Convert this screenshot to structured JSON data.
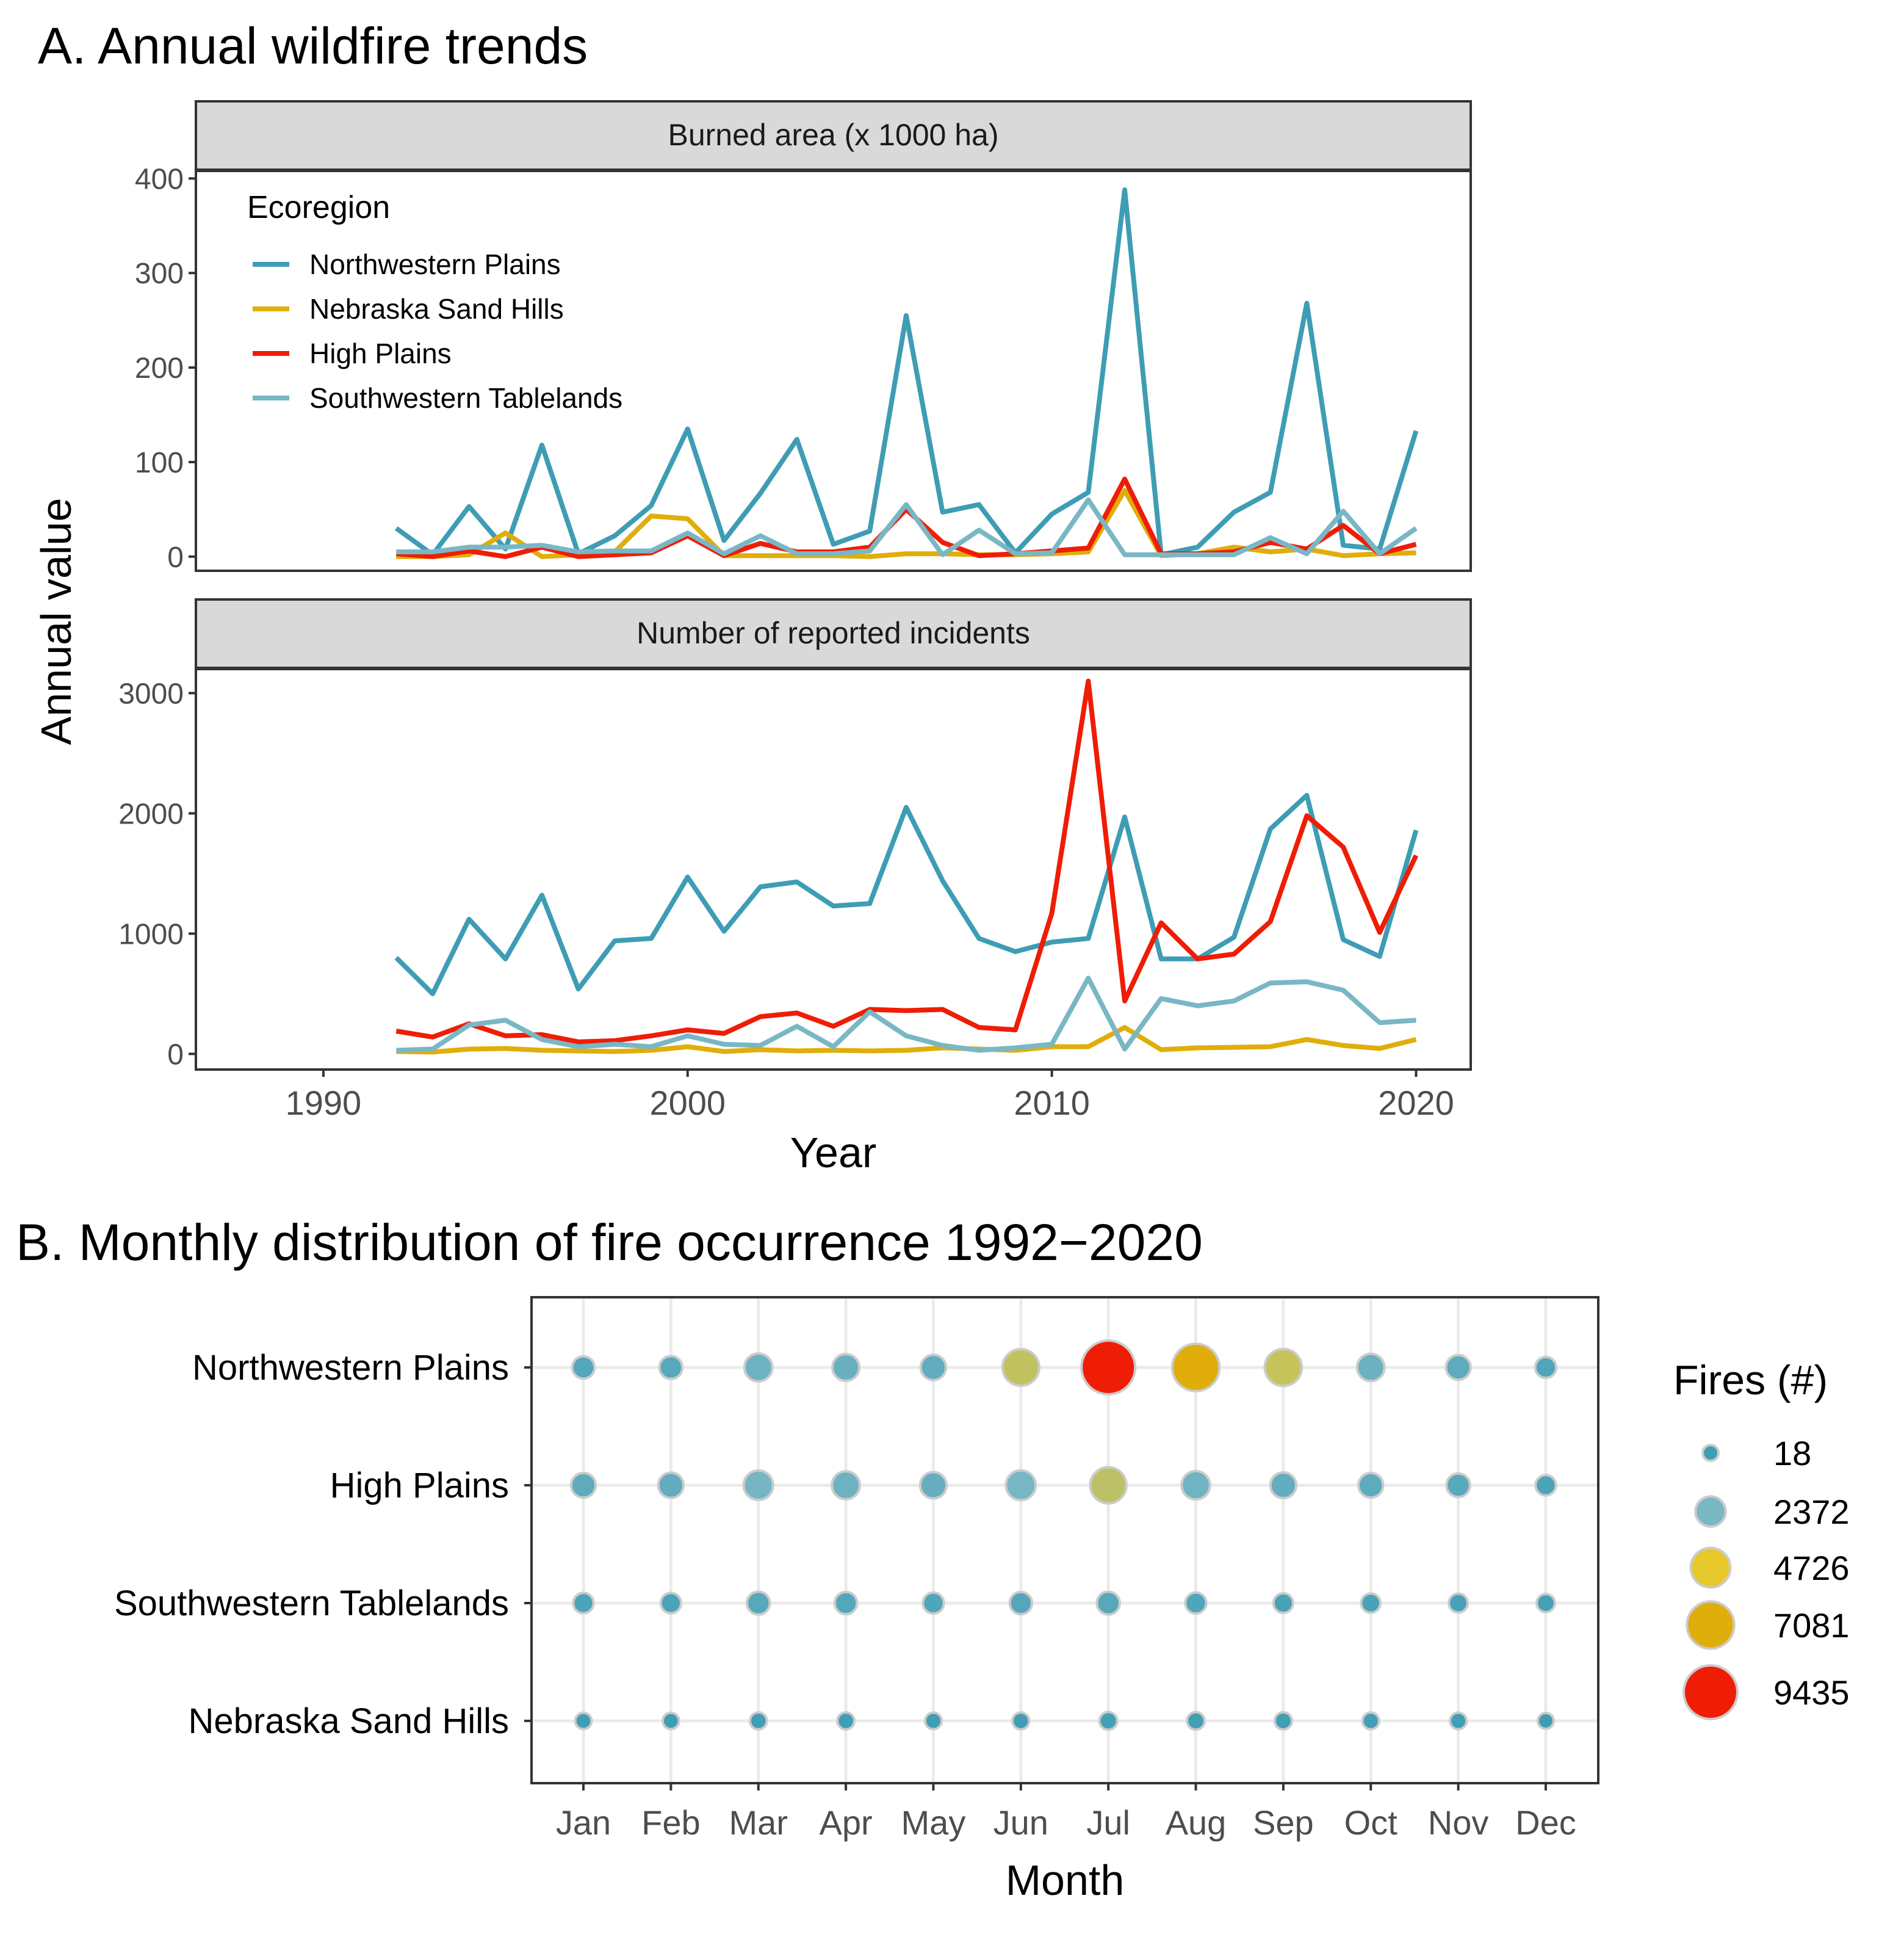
{
  "colors": {
    "northwestern": "#3e9db4",
    "nebraska": "#e0ae0b",
    "high": "#ef1d06",
    "southwestern": "#79b7c5",
    "strip_bg": "#d9d9d9",
    "grid": "#ebebeb",
    "panel_border": "#333333",
    "bubble_outline": "#cccccc"
  },
  "chart_data": [
    {
      "panel": "A",
      "type": "line",
      "title": "A. Annual wildfire trends",
      "xlabel": "Year",
      "ylabel": "Annual value",
      "xlim": [
        1986.5,
        2021.5
      ],
      "x_ticks": [
        1990,
        2000,
        2010,
        2020
      ],
      "grid": false,
      "legend": {
        "title": "Ecoregion",
        "placement": "top-left inside first facet",
        "entries": [
          "Northwestern Plains",
          "Nebraska Sand Hills",
          "High Plains",
          "Southwestern Tablelands"
        ]
      },
      "x": [
        1992,
        1993,
        1994,
        1995,
        1996,
        1997,
        1998,
        1999,
        2000,
        2001,
        2002,
        2003,
        2004,
        2005,
        2006,
        2007,
        2008,
        2009,
        2010,
        2011,
        2012,
        2013,
        2014,
        2015,
        2016,
        2017,
        2018,
        2019,
        2020
      ],
      "facets": [
        {
          "strip": "Burned area (x 1000 ha)",
          "ylim": [
            -15,
            408
          ],
          "y_ticks": [
            0,
            100,
            200,
            300,
            400
          ],
          "series": [
            {
              "name": "Northwestern Plains",
              "color_key": "northwestern",
              "values": [
                30,
                2,
                53,
                8,
                118,
                3,
                22,
                54,
                135,
                17,
                67,
                124,
                13,
                27,
                255,
                47,
                55,
                4,
                45,
                68,
                388,
                2,
                10,
                47,
                68,
                268,
                12,
                8,
                133
              ]
            },
            {
              "name": "Nebraska Sand Hills",
              "color_key": "nebraska",
              "values": [
                0,
                0,
                2,
                25,
                0,
                2,
                5,
                43,
                40,
                1,
                1,
                1,
                1,
                0,
                3,
                3,
                2,
                2,
                3,
                5,
                70,
                1,
                3,
                10,
                5,
                8,
                1,
                3,
                4
              ]
            },
            {
              "name": "High Plains",
              "color_key": "high",
              "values": [
                3,
                0,
                6,
                0,
                10,
                0,
                2,
                4,
                22,
                1,
                14,
                5,
                5,
                10,
                50,
                15,
                1,
                3,
                6,
                9,
                82,
                3,
                3,
                5,
                15,
                8,
                33,
                3,
                13
              ]
            },
            {
              "name": "Southwestern Tablelands",
              "color_key": "southwestern",
              "values": [
                5,
                5,
                10,
                10,
                12,
                5,
                6,
                6,
                25,
                3,
                22,
                3,
                3,
                6,
                55,
                2,
                28,
                3,
                4,
                60,
                2,
                2,
                2,
                2,
                20,
                3,
                48,
                3,
                30
              ]
            }
          ]
        },
        {
          "strip": "Number of reported incidents",
          "ylim": [
            -130,
            3200
          ],
          "y_ticks": [
            0,
            1000,
            2000,
            3000
          ],
          "series": [
            {
              "name": "Northwestern Plains",
              "color_key": "northwestern",
              "values": [
                800,
                500,
                1120,
                790,
                1320,
                540,
                940,
                960,
                1470,
                1020,
                1390,
                1430,
                1230,
                1250,
                2050,
                1440,
                960,
                850,
                930,
                960,
                1970,
                790,
                790,
                970,
                1870,
                2150,
                950,
                810,
                1860
              ]
            },
            {
              "name": "Nebraska Sand Hills",
              "color_key": "nebraska",
              "values": [
                20,
                15,
                40,
                45,
                30,
                25,
                20,
                30,
                60,
                20,
                35,
                25,
                30,
                25,
                30,
                50,
                40,
                30,
                60,
                60,
                220,
                35,
                50,
                55,
                60,
                120,
                70,
                45,
                120
              ]
            },
            {
              "name": "High Plains",
              "color_key": "high",
              "values": [
                190,
                140,
                250,
                150,
                160,
                100,
                110,
                150,
                200,
                170,
                310,
                340,
                230,
                370,
                360,
                370,
                220,
                200,
                1170,
                3100,
                440,
                1090,
                790,
                830,
                1100,
                1980,
                1720,
                1010,
                1650
              ]
            },
            {
              "name": "Southwestern Tablelands",
              "color_key": "southwestern",
              "values": [
                30,
                40,
                240,
                280,
                120,
                60,
                80,
                60,
                150,
                80,
                70,
                230,
                60,
                350,
                150,
                70,
                30,
                50,
                80,
                630,
                40,
                460,
                400,
                440,
                590,
                600,
                530,
                260,
                280
              ]
            }
          ]
        }
      ]
    },
    {
      "panel": "B",
      "type": "scatter",
      "subtype": "bubble",
      "title": "B. Monthly distribution of fire occurrence 1992−2020",
      "xlabel": "Month",
      "ylabel": "",
      "grid": true,
      "categories_x": [
        "Jan",
        "Feb",
        "Mar",
        "Apr",
        "May",
        "Jun",
        "Jul",
        "Aug",
        "Sep",
        "Oct",
        "Nov",
        "Dec"
      ],
      "categories_y": [
        "Northwestern Plains",
        "High Plains",
        "Southwestern Tablelands",
        "Nebraska Sand Hills"
      ],
      "size_range": [
        18,
        9435
      ],
      "color_scale": [
        {
          "value": 18,
          "color": "#3e9db4"
        },
        {
          "value": 2372,
          "color": "#79b7c5"
        },
        {
          "value": 4726,
          "color": "#e7c82a"
        },
        {
          "value": 7081,
          "color": "#e0ae0b"
        },
        {
          "value": 9435,
          "color": "#ef1d06"
        }
      ],
      "values": [
        [
          900,
          1000,
          1900,
          1700,
          1400,
          3900,
          9435,
          7100,
          4000,
          1800,
          1300,
          700
        ],
        [
          1300,
          1400,
          2200,
          1900,
          1600,
          2300,
          3800,
          2000,
          1500,
          1300,
          1100,
          600
        ],
        [
          600,
          600,
          1000,
          900,
          700,
          900,
          1000,
          700,
          500,
          450,
          400,
          300
        ],
        [
          80,
          80,
          150,
          140,
          100,
          130,
          250,
          230,
          170,
          120,
          100,
          18
        ]
      ],
      "legend": {
        "title": "Fires (#)",
        "placement": "right",
        "breaks": [
          18,
          2372,
          4726,
          7081,
          9435
        ],
        "labels": [
          "18",
          "2372",
          "4726",
          "7081",
          "9435"
        ]
      }
    }
  ]
}
